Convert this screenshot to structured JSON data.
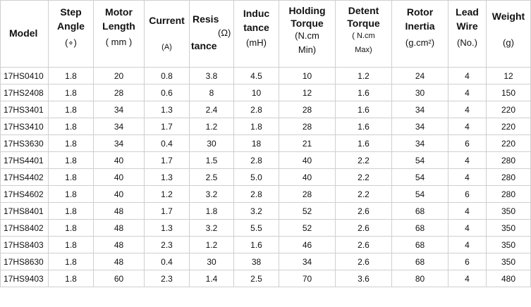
{
  "table": {
    "headers": {
      "model": "Model",
      "step": [
        "Step",
        "Angle",
        "(∘)"
      ],
      "length": [
        "Motor",
        "Length",
        "( mm )"
      ],
      "current": [
        "Current",
        "(A)"
      ],
      "resistance": [
        "Resis",
        "(Ω)",
        "tance"
      ],
      "inductance": [
        "Induc",
        "tance",
        "(mH)"
      ],
      "holding": [
        "Holding",
        "Torque",
        "(N.cm",
        "Min)"
      ],
      "detent": [
        "Detent",
        "Torque",
        "( N.cm",
        "Max)"
      ],
      "inertia": [
        "Rotor",
        "Inertia",
        "(g.cm²)"
      ],
      "lead": [
        "Lead",
        "Wire",
        "(No.)"
      ],
      "weight": [
        "Weight",
        "(g)"
      ]
    },
    "rows": [
      [
        "17HS0410",
        "1.8",
        "20",
        "0.8",
        "3.8",
        "4.5",
        "10",
        "1.2",
        "24",
        "4",
        "12"
      ],
      [
        "17HS2408",
        "1.8",
        "28",
        "0.6",
        "8",
        "10",
        "12",
        "1.6",
        "30",
        "4",
        "150"
      ],
      [
        "17HS3401",
        "1.8",
        "34",
        "1.3",
        "2.4",
        "2.8",
        "28",
        "1.6",
        "34",
        "4",
        "220"
      ],
      [
        "17HS3410",
        "1.8",
        "34",
        "1.7",
        "1.2",
        "1.8",
        "28",
        "1.6",
        "34",
        "4",
        "220"
      ],
      [
        "17HS3630",
        "1.8",
        "34",
        "0.4",
        "30",
        "18",
        "21",
        "1.6",
        "34",
        "6",
        "220"
      ],
      [
        "17HS4401",
        "1.8",
        "40",
        "1.7",
        "1.5",
        "2.8",
        "40",
        "2.2",
        "54",
        "4",
        "280"
      ],
      [
        "17HS4402",
        "1.8",
        "40",
        "1.3",
        "2.5",
        "5.0",
        "40",
        "2.2",
        "54",
        "4",
        "280"
      ],
      [
        "17HS4602",
        "1.8",
        "40",
        "1.2",
        "3.2",
        "2.8",
        "28",
        "2.2",
        "54",
        "6",
        "280"
      ],
      [
        "17HS8401",
        "1.8",
        "48",
        "1.7",
        "1.8",
        "3.2",
        "52",
        "2.6",
        "68",
        "4",
        "350"
      ],
      [
        "17HS8402",
        "1.8",
        "48",
        "1.3",
        "3.2",
        "5.5",
        "52",
        "2.6",
        "68",
        "4",
        "350"
      ],
      [
        "17HS8403",
        "1.8",
        "48",
        "2.3",
        "1.2",
        "1.6",
        "46",
        "2.6",
        "68",
        "4",
        "350"
      ],
      [
        "17HS8630",
        "1.8",
        "48",
        "0.4",
        "30",
        "38",
        "34",
        "2.6",
        "68",
        "6",
        "350"
      ],
      [
        "17HS9403",
        "1.8",
        "60",
        "2.3",
        "1.4",
        "2.5",
        "70",
        "3.6",
        "80",
        "4",
        "480"
      ]
    ]
  }
}
